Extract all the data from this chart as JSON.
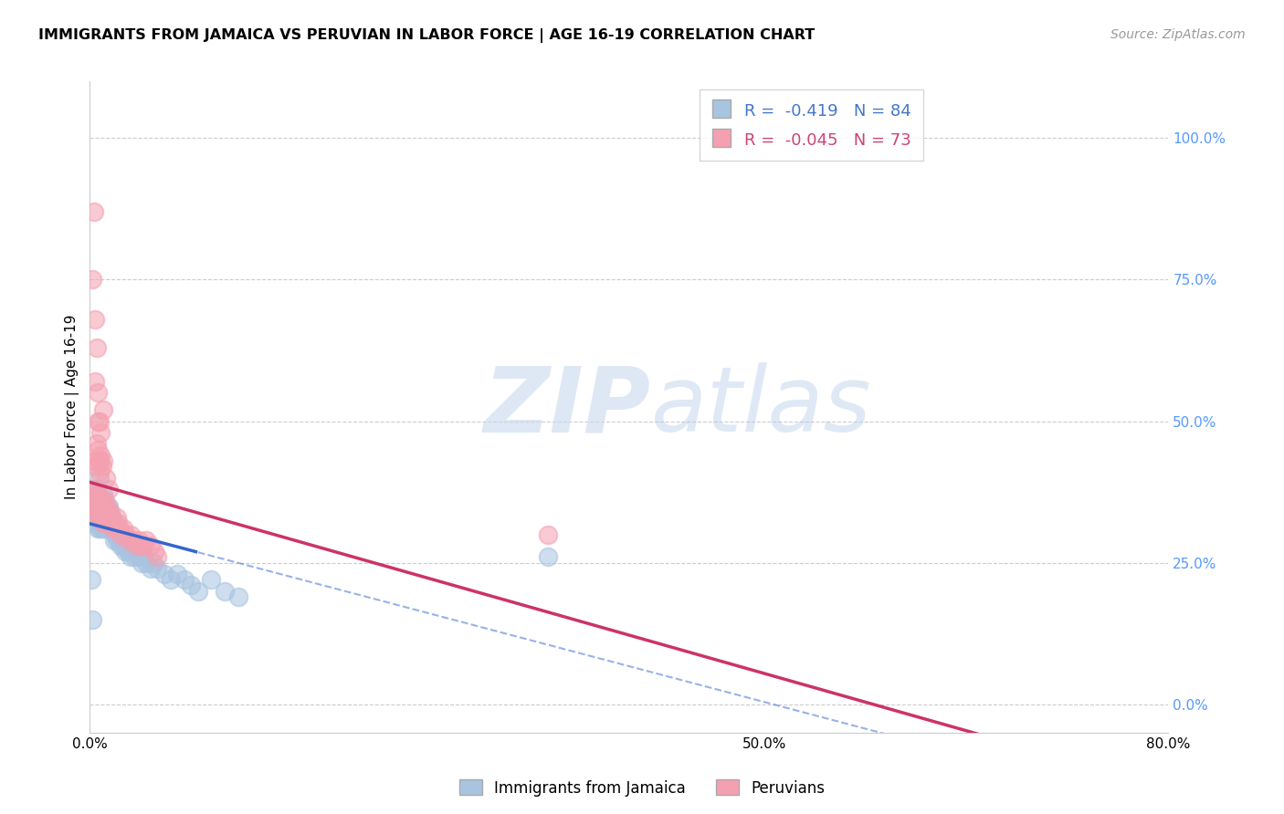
{
  "title": "IMMIGRANTS FROM JAMAICA VS PERUVIAN IN LABOR FORCE | AGE 16-19 CORRELATION CHART",
  "source": "Source: ZipAtlas.com",
  "ylabel": "In Labor Force | Age 16-19",
  "xlim": [
    0.0,
    0.8
  ],
  "ylim": [
    -0.05,
    1.1
  ],
  "yticks_right": [
    0.0,
    0.25,
    0.5,
    0.75,
    1.0
  ],
  "yticklabels_right": [
    "0.0%",
    "25.0%",
    "50.0%",
    "75.0%",
    "100.0%"
  ],
  "xtick_positions": [
    0.0,
    0.5,
    0.8
  ],
  "xticklabels": [
    "0.0%",
    "50.0%",
    "80.0%"
  ],
  "jamaica_color": "#a8c4e0",
  "peruvian_color": "#f4a0b0",
  "jamaica_line_color": "#3366cc",
  "peruvian_line_color": "#cc3366",
  "legend_R_jamaica": "-0.419",
  "legend_N_jamaica": "84",
  "legend_R_peruvian": "-0.045",
  "legend_N_peruvian": "73",
  "legend_label_jamaica": "Immigrants from Jamaica",
  "legend_label_peruvian": "Peruvians",
  "watermark_zip": "ZIP",
  "watermark_atlas": "atlas",
  "jamaica_x": [
    0.001,
    0.001,
    0.002,
    0.002,
    0.002,
    0.003,
    0.003,
    0.003,
    0.004,
    0.004,
    0.004,
    0.005,
    0.005,
    0.005,
    0.005,
    0.006,
    0.006,
    0.006,
    0.006,
    0.007,
    0.007,
    0.007,
    0.007,
    0.008,
    0.008,
    0.008,
    0.009,
    0.009,
    0.009,
    0.01,
    0.01,
    0.01,
    0.01,
    0.011,
    0.011,
    0.011,
    0.012,
    0.012,
    0.012,
    0.013,
    0.013,
    0.014,
    0.014,
    0.015,
    0.015,
    0.016,
    0.016,
    0.017,
    0.018,
    0.018,
    0.019,
    0.02,
    0.02,
    0.021,
    0.022,
    0.023,
    0.024,
    0.025,
    0.026,
    0.027,
    0.028,
    0.03,
    0.031,
    0.033,
    0.035,
    0.036,
    0.038,
    0.04,
    0.042,
    0.045,
    0.047,
    0.05,
    0.055,
    0.06,
    0.065,
    0.07,
    0.075,
    0.08,
    0.09,
    0.1,
    0.11,
    0.34,
    0.001,
    0.002
  ],
  "jamaica_y": [
    0.36,
    0.34,
    0.38,
    0.35,
    0.33,
    0.37,
    0.35,
    0.33,
    0.36,
    0.34,
    0.32,
    0.38,
    0.36,
    0.34,
    0.32,
    0.35,
    0.33,
    0.31,
    0.36,
    0.35,
    0.33,
    0.31,
    0.4,
    0.36,
    0.34,
    0.32,
    0.35,
    0.33,
    0.31,
    0.37,
    0.35,
    0.33,
    0.31,
    0.36,
    0.34,
    0.32,
    0.35,
    0.33,
    0.31,
    0.34,
    0.32,
    0.35,
    0.33,
    0.34,
    0.32,
    0.33,
    0.31,
    0.32,
    0.31,
    0.29,
    0.3,
    0.31,
    0.29,
    0.3,
    0.29,
    0.28,
    0.29,
    0.28,
    0.27,
    0.28,
    0.27,
    0.26,
    0.27,
    0.26,
    0.27,
    0.26,
    0.25,
    0.26,
    0.25,
    0.24,
    0.25,
    0.24,
    0.23,
    0.22,
    0.23,
    0.22,
    0.21,
    0.2,
    0.22,
    0.2,
    0.19,
    0.26,
    0.22,
    0.15
  ],
  "peruvian_x": [
    0.001,
    0.002,
    0.002,
    0.003,
    0.003,
    0.004,
    0.004,
    0.004,
    0.005,
    0.005,
    0.005,
    0.006,
    0.006,
    0.006,
    0.007,
    0.007,
    0.007,
    0.008,
    0.008,
    0.009,
    0.009,
    0.01,
    0.01,
    0.01,
    0.011,
    0.011,
    0.012,
    0.012,
    0.013,
    0.013,
    0.014,
    0.014,
    0.015,
    0.016,
    0.017,
    0.018,
    0.019,
    0.02,
    0.021,
    0.022,
    0.023,
    0.025,
    0.027,
    0.028,
    0.03,
    0.032,
    0.034,
    0.036,
    0.038,
    0.04,
    0.042,
    0.045,
    0.048,
    0.05,
    0.003,
    0.004,
    0.005,
    0.006,
    0.007,
    0.008,
    0.009,
    0.01,
    0.005,
    0.006,
    0.007,
    0.008,
    0.01,
    0.012,
    0.014,
    0.34,
    0.003,
    0.002,
    0.004
  ],
  "peruvian_y": [
    0.36,
    0.38,
    0.35,
    0.37,
    0.35,
    0.36,
    0.34,
    0.57,
    0.37,
    0.35,
    0.33,
    0.36,
    0.34,
    0.5,
    0.35,
    0.43,
    0.41,
    0.36,
    0.34,
    0.35,
    0.33,
    0.36,
    0.34,
    0.32,
    0.35,
    0.33,
    0.34,
    0.32,
    0.35,
    0.33,
    0.34,
    0.32,
    0.33,
    0.32,
    0.31,
    0.32,
    0.31,
    0.33,
    0.32,
    0.31,
    0.3,
    0.31,
    0.3,
    0.29,
    0.3,
    0.29,
    0.28,
    0.29,
    0.28,
    0.28,
    0.29,
    0.28,
    0.27,
    0.26,
    0.43,
    0.42,
    0.46,
    0.45,
    0.43,
    0.44,
    0.42,
    0.43,
    0.63,
    0.55,
    0.5,
    0.48,
    0.52,
    0.4,
    0.38,
    0.3,
    0.87,
    0.75,
    0.68
  ],
  "grid_color": "#cccccc",
  "grid_yticks": [
    0.0,
    0.25,
    0.5,
    0.75,
    1.0
  ],
  "spine_color": "#cccccc"
}
